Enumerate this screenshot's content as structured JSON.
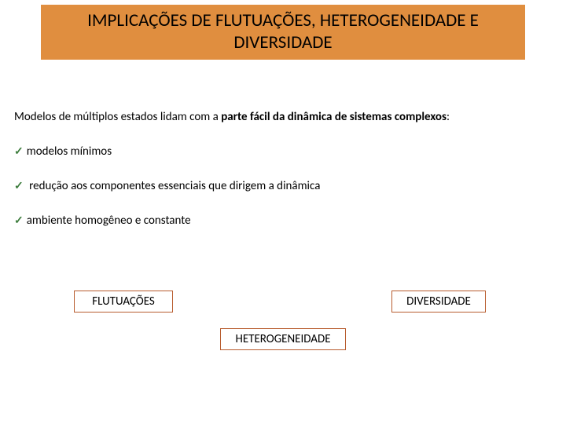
{
  "title": "IMPLICAÇÕES DE FLUTUAÇÕES, HETEROGENEIDADE E DIVERSIDADE",
  "intro_prefix": "Modelos de múltiplos estados lidam com a ",
  "intro_bold": "parte fácil da dinâmica de sistemas complexos",
  "intro_suffix": ":",
  "bullets": {
    "b1": "modelos mínimos",
    "b2": " redução aos componentes essenciais que dirigem a dinâmica",
    "b3": "ambiente homogêneo e constante"
  },
  "boxes": {
    "flut": "FLUTUAÇÕES",
    "divers": "DIVERSIDADE",
    "hetero": "HETEROGENEIDADE"
  },
  "colors": {
    "title_bg": "#e08e3f",
    "box_border": "#b85c2e",
    "check": "#3c7c3c",
    "text": "#000000",
    "background": "#ffffff"
  }
}
